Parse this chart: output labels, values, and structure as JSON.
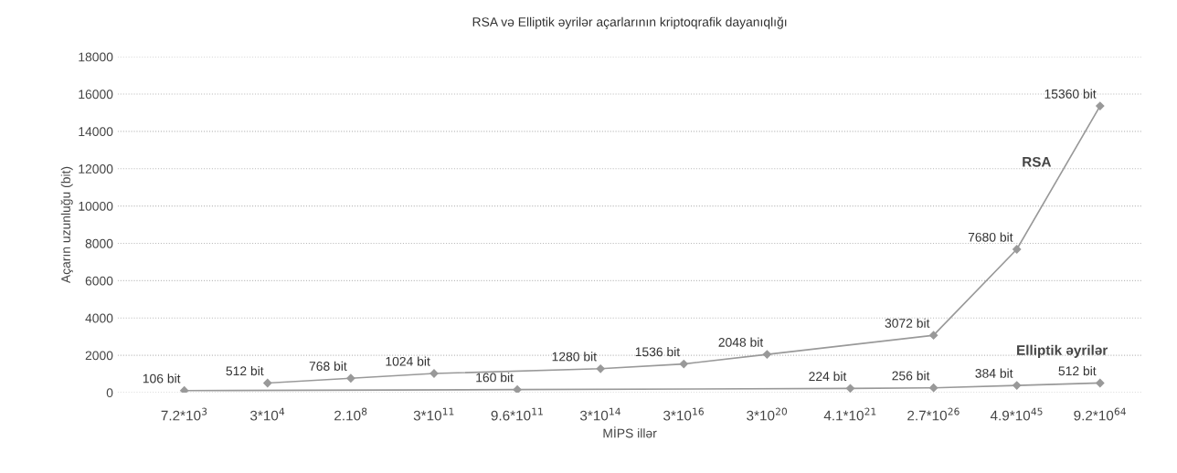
{
  "chart_data": {
    "type": "line",
    "title": "RSA və Elliptik əyrilər açarlarının kriptoqrafik dayanıqlığı",
    "xlabel": "MİPS illər",
    "ylabel": "Açarın uzunluğu (bit)",
    "categories": [
      "7.2*10$^{3}$",
      "3*10$^{4}$",
      "2.10$^{8}$",
      "3*10$^{11}$",
      "9.6*10$^{11}$",
      "3*10$^{14}$",
      "3*10$^{16}$",
      "3*10$^{20}$",
      "4.1*10$^{21}$",
      "2.7*10$^{26}$",
      "4.9*10$^{45}$",
      "9.2*10$^{64}$"
    ],
    "series": [
      {
        "name": "RSA",
        "color": "#999999",
        "values": [
          null,
          512,
          768,
          1024,
          null,
          1280,
          1536,
          2048,
          null,
          3072,
          7680,
          15360
        ],
        "value_labels": [
          null,
          "512 bit",
          "768 bit",
          "1024 bit",
          null,
          "1280 bit",
          "1536 bit",
          "2048 bit",
          null,
          "3072 bit",
          "7680 bit",
          "15360 bit"
        ]
      },
      {
        "name": "Elliptik əyrilər",
        "color": "#999999",
        "values": [
          106,
          null,
          null,
          null,
          160,
          null,
          null,
          null,
          224,
          256,
          384,
          512
        ],
        "value_labels": [
          "106 bit",
          null,
          null,
          null,
          "160 bit",
          null,
          null,
          null,
          "224 bit",
          "256 bit",
          "384 bit",
          "512 bit"
        ]
      }
    ],
    "ylim": [
      0,
      18000
    ],
    "yticks": [
      0,
      2000,
      4000,
      6000,
      8000,
      10000,
      12000,
      14000,
      16000,
      18000
    ],
    "grid": "y",
    "marker": "diamond",
    "line_style": "solid"
  }
}
